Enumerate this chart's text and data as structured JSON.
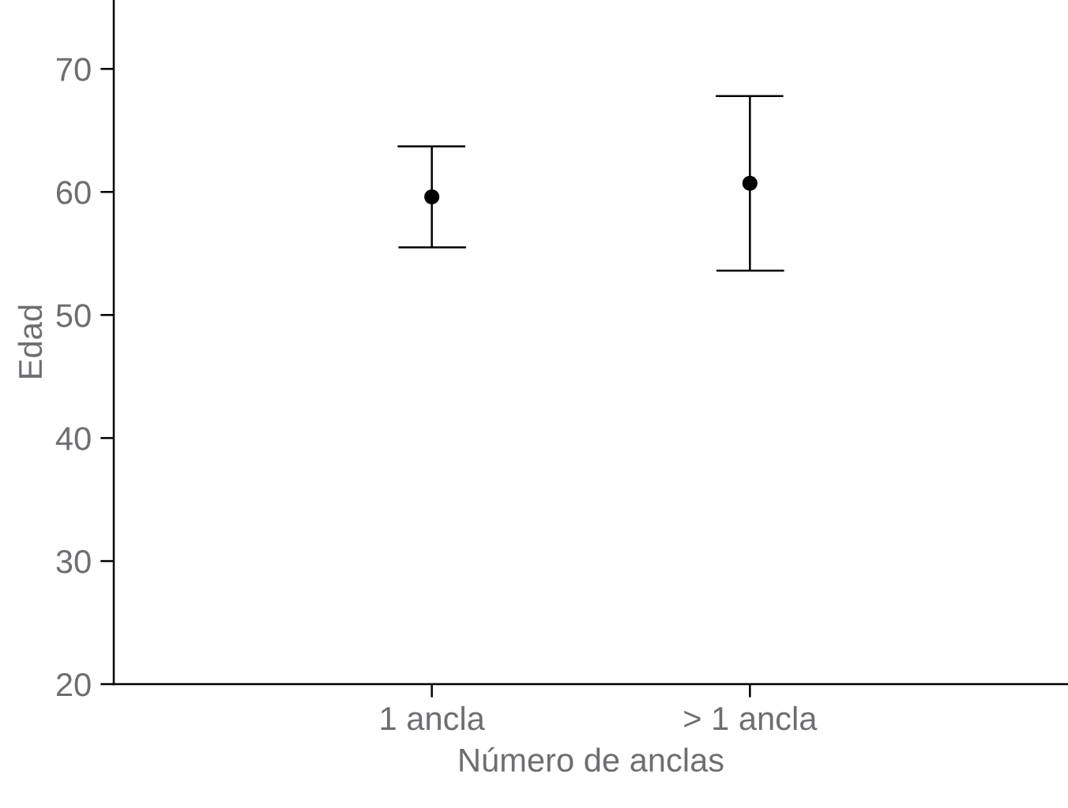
{
  "chart_data": {
    "type": "scatter",
    "xlabel": "Número de anclas",
    "ylabel": "Edad",
    "categories": [
      "1 ancla",
      "> 1 ancla"
    ],
    "values": [
      59.6,
      60.7
    ],
    "errors": [
      4.1,
      7.1
    ],
    "color": "#000000",
    "marker": "circle",
    "ylim": [
      20,
      75.6
    ],
    "yticks": [
      20,
      30,
      40,
      50,
      60,
      70
    ],
    "grid": false
  }
}
